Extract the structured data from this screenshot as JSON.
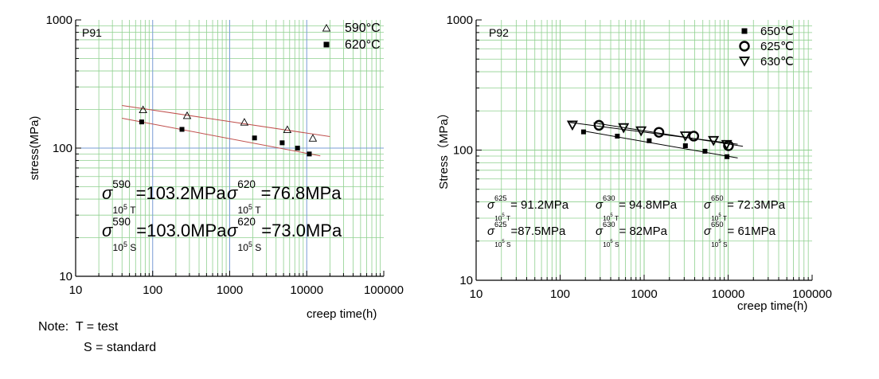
{
  "chart_data": [
    {
      "type": "scatter",
      "panel_label": "P91",
      "xscale": "log",
      "yscale": "log",
      "xlim": [
        10,
        100000
      ],
      "ylim": [
        10,
        1000
      ],
      "xlabel": "creep time(h)",
      "ylabel": "stress(MPa)",
      "xticks": [
        "10",
        "100",
        "1000",
        "10000",
        "100000"
      ],
      "yticks": [
        "10",
        "100",
        "1000"
      ],
      "grid": true,
      "legend_position": "top-right",
      "series": [
        {
          "name": "590°C",
          "marker": "open-triangle",
          "color": "#000000",
          "x": [
            75,
            280,
            1550,
            5600,
            12000
          ],
          "y": [
            200,
            180,
            160,
            140,
            120
          ]
        },
        {
          "name": "620°C",
          "marker": "filled-square",
          "color": "#000000",
          "x": [
            72,
            240,
            2100,
            4800,
            7600,
            10800
          ],
          "y": [
            160,
            140,
            120,
            110,
            100,
            90
          ]
        }
      ],
      "fit_lines": [
        {
          "series": "590°C",
          "color": "#c0504d",
          "x": [
            40,
            20000
          ],
          "y": [
            215,
            123
          ]
        },
        {
          "series": "620°C",
          "color": "#c0504d",
          "x": [
            40,
            15000
          ],
          "y": [
            171,
            87
          ]
        }
      ],
      "annotations": [
        {
          "sigma": "σ",
          "sup": "590",
          "sub": "10",
          "sub_exp": "5",
          "sub_tail": " T",
          "value": "=103.2MPa"
        },
        {
          "sigma": "σ",
          "sup": "620",
          "sub": "10",
          "sub_exp": "5",
          "sub_tail": " T",
          "value": "=76.8MPa"
        },
        {
          "sigma": "σ",
          "sup": "590",
          "sub": "10",
          "sub_exp": "5",
          "sub_tail": " S",
          "value": "=103.0MPa"
        },
        {
          "sigma": "σ",
          "sup": "620",
          "sub": "10",
          "sub_exp": "5",
          "sub_tail": " S",
          "value": "=73.0MPa"
        }
      ]
    },
    {
      "type": "scatter",
      "panel_label": "P92",
      "xscale": "log",
      "yscale": "log",
      "xlim": [
        10,
        100000
      ],
      "ylim": [
        10,
        1000
      ],
      "xlabel": "creep time(h)",
      "ylabel": "Stress（MPa）",
      "xticks": [
        "10",
        "100",
        "1000",
        "10000",
        "100000"
      ],
      "yticks": [
        "10",
        "100",
        "1000"
      ],
      "grid": true,
      "legend_position": "top-right",
      "series": [
        {
          "name": "650℃",
          "marker": "filled-square",
          "color": "#000000",
          "x": [
            190,
            480,
            1150,
            3100,
            5300,
            9700
          ],
          "y": [
            138,
            128,
            118,
            108,
            98,
            89
          ]
        },
        {
          "name": "625℃",
          "marker": "open-circle",
          "color": "#000000",
          "x": [
            290,
            1500,
            3900,
            10100
          ],
          "y": [
            155,
            137,
            128,
            108
          ]
        },
        {
          "name": "630℃",
          "marker": "open-down-triangle",
          "color": "#000000",
          "x": [
            140,
            570,
            920,
            3100,
            6700,
            9600
          ],
          "y": [
            155,
            148,
            140,
            128,
            118,
            110
          ]
        }
      ],
      "fit_lines": [
        {
          "series": "650℃",
          "color": "#000000",
          "x": [
            180,
            13000
          ],
          "y": [
            141,
            87
          ]
        },
        {
          "series": "625℃",
          "color": "#000000",
          "x": [
            250,
            15000
          ],
          "y": [
            162,
            107
          ]
        },
        {
          "series": "630℃",
          "color": "#000000",
          "x": [
            130,
            13000
          ],
          "y": [
            163,
            111
          ]
        }
      ],
      "annotations": [
        {
          "sigma": "σ",
          "sup": "625",
          "sub": "10",
          "sub_exp": "5",
          "sub_tail": " T",
          "value": "= 91.2MPa"
        },
        {
          "sigma": "σ",
          "sup": "630",
          "sub": "10",
          "sub_exp": "5",
          "sub_tail": " T",
          "value": "= 94.8MPa"
        },
        {
          "sigma": "σ",
          "sup": "650",
          "sub": "10",
          "sub_exp": "5",
          "sub_tail": " T",
          "value": "= 72.3MPa"
        },
        {
          "sigma": "σ",
          "sup": "625",
          "sub": "10",
          "sub_exp": "5",
          "sub_tail": " S",
          "value": "=87.5MPa"
        },
        {
          "sigma": "σ",
          "sup": "630",
          "sub": "10",
          "sub_exp": "5",
          "sub_tail": " S",
          "value": "= 82MPa"
        },
        {
          "sigma": "σ",
          "sup": "650",
          "sub": "10",
          "sub_exp": "5",
          "sub_tail": " S",
          "value": "= 61MPa"
        }
      ]
    }
  ],
  "note": {
    "line1": "Note:  T = test",
    "line2": "S = standard"
  },
  "colors": {
    "grid": "#8fd08f",
    "ref_grid": "#7a9cd6",
    "fit_red": "#c0504d",
    "axis": "#000000"
  }
}
